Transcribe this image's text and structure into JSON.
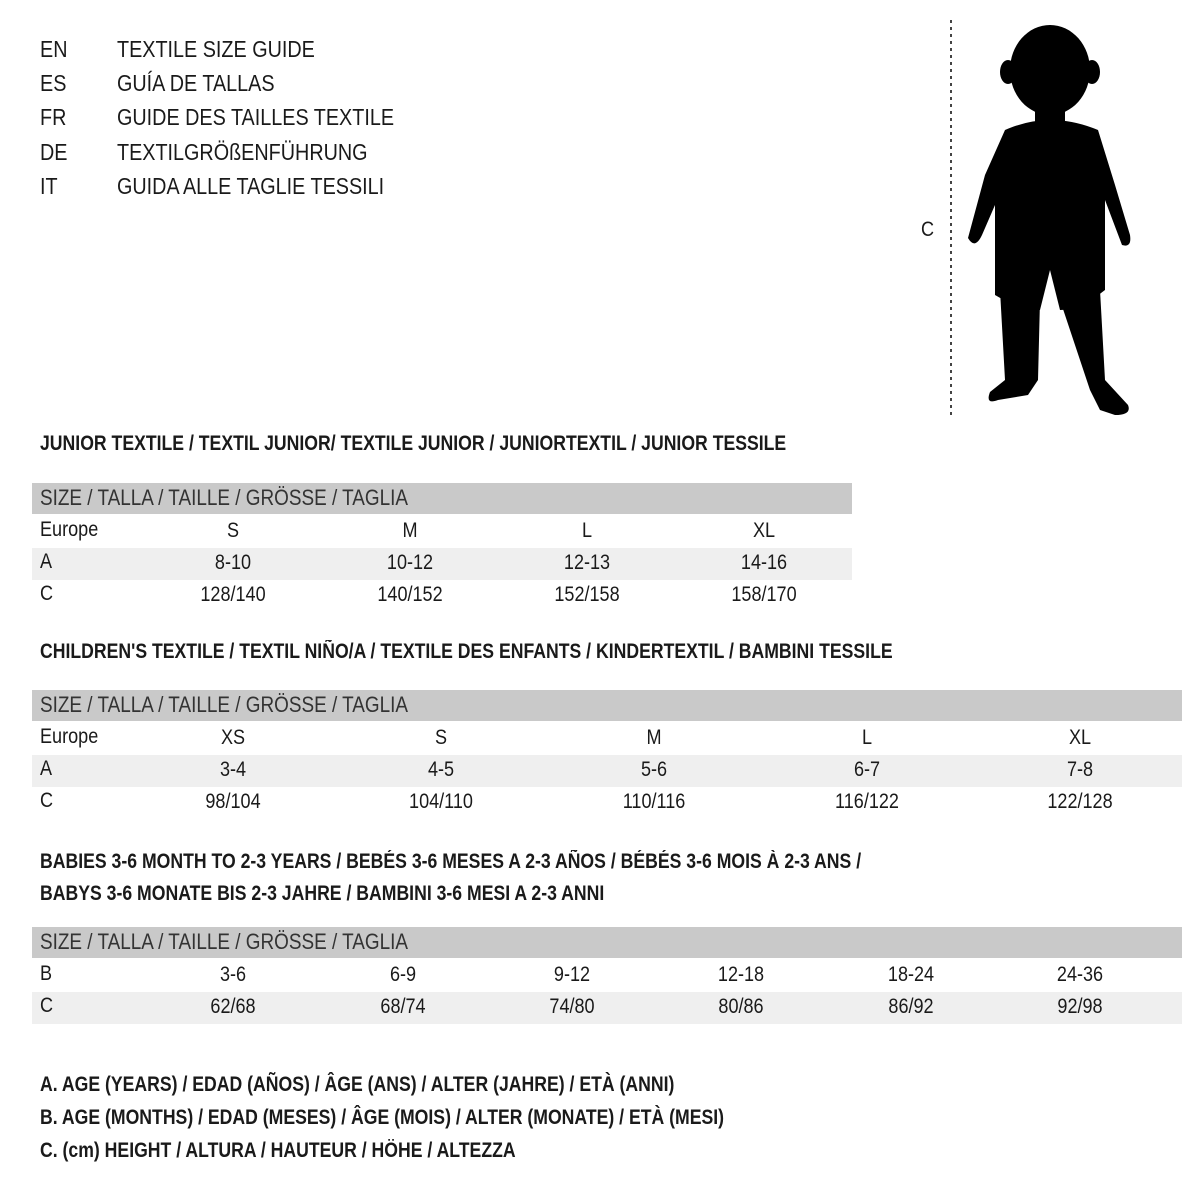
{
  "titles": [
    {
      "lang": "EN",
      "text": "TEXTILE SIZE GUIDE"
    },
    {
      "lang": "ES",
      "text": "GUÍA DE TALLAS"
    },
    {
      "lang": "FR",
      "text": "GUIDE DES TAILLES TEXTILE"
    },
    {
      "lang": "DE",
      "text": "TEXTILGRÖßENFÜHRUNG"
    },
    {
      "lang": "IT",
      "text": "GUIDA ALLE TAGLIE TESSILI"
    }
  ],
  "figure": {
    "measure_label": "C"
  },
  "colors": {
    "header_bg": "#c9c9c9",
    "stripe_bg": "#efefef"
  },
  "sections": [
    {
      "title_lines": [
        "JUNIOR TEXTILE / TEXTIL JUNIOR/ TEXTILE JUNIOR / JUNIORTEXTIL / JUNIOR TESSILE"
      ],
      "header": "SIZE / TALLA / TAILLE / GRÖSSE / TAGLIA",
      "rows": [
        {
          "label": "Europe",
          "values": [
            "S",
            "M",
            "L",
            "XL"
          ]
        },
        {
          "label": "A",
          "values": [
            "8-10",
            "10-12",
            "12-13",
            "14-16"
          ]
        },
        {
          "label": "C",
          "values": [
            "128/140",
            "140/152",
            "152/158",
            "158/170"
          ]
        }
      ]
    },
    {
      "title_lines": [
        "CHILDREN'S TEXTILE / TEXTIL NIÑO/A / TEXTILE DES ENFANTS / KINDERTEXTIL / BAMBINI TESSILE"
      ],
      "header": "SIZE / TALLA / TAILLE / GRÖSSE / TAGLIA",
      "rows": [
        {
          "label": "Europe",
          "values": [
            "XS",
            "S",
            "M",
            "L",
            "XL"
          ]
        },
        {
          "label": "A",
          "values": [
            "3-4",
            "4-5",
            "5-6",
            "6-7",
            "7-8"
          ]
        },
        {
          "label": "C",
          "values": [
            "98/104",
            "104/110",
            "110/116",
            "116/122",
            "122/128"
          ]
        }
      ]
    },
    {
      "title_lines": [
        "BABIES 3-6 MONTH TO 2-3 YEARS / BEBÉS 3-6 MESES A 2-3 AÑOS / BÉBÉS 3-6 MOIS À 2-3 ANS /",
        "BABYS 3-6 MONATE BIS 2-3 JAHRE / BAMBINI 3-6 MESI A 2-3 ANNI"
      ],
      "header": "SIZE / TALLA / TAILLE / GRÖSSE / TAGLIA",
      "rows": [
        {
          "label": "B",
          "values": [
            "3-6",
            "6-9",
            "9-12",
            "12-18",
            "18-24",
            "24-36"
          ]
        },
        {
          "label": "C",
          "values": [
            "62/68",
            "68/74",
            "74/80",
            "80/86",
            "86/92",
            "92/98"
          ]
        }
      ]
    }
  ],
  "legend": [
    "A. AGE (YEARS) / EDAD (AÑOS) / ÂGE (ANS) / ALTER (JAHRE) / ETÀ (ANNI)",
    "B. AGE (MONTHS) / EDAD (MESES) / ÂGE (MOIS) / ALTER (MONATE) / ETÀ (MESI)",
    "C. (cm) HEIGHT / ALTURA / HAUTEUR / HÖHE / ALTEZZA"
  ]
}
